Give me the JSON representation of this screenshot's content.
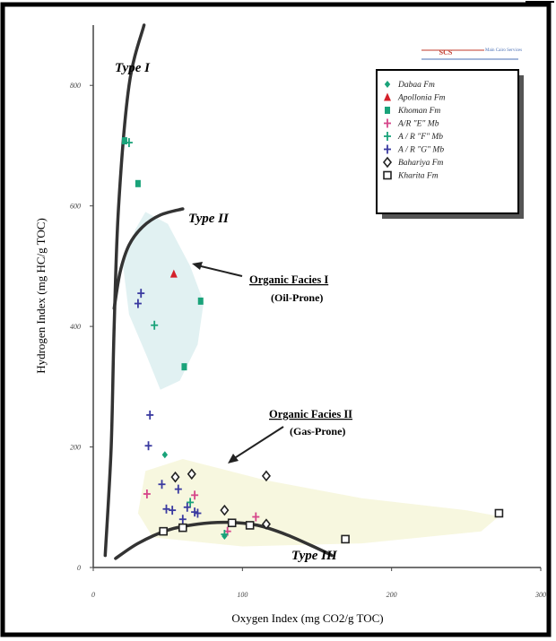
{
  "chart_data": {
    "type": "scatter",
    "title": "",
    "xlabel": "Oxygen Index (mg CO2/g TOC)",
    "ylabel": "Hydrogen Index (mg HC/g TOC)",
    "xlim": [
      0,
      300
    ],
    "ylim": [
      0,
      900
    ],
    "x_ticks": [
      0,
      100,
      200,
      300
    ],
    "x_tick_labels": [
      "0",
      "100",
      "200",
      "300"
    ],
    "y_ticks": [
      0,
      200,
      400,
      600,
      800
    ],
    "y_tick_labels": [
      "0",
      "200",
      "400",
      "600",
      "800"
    ],
    "grid": false,
    "legend_position": "top-right",
    "logo": {
      "left": "SCS",
      "right": "Main Cairo Services",
      "color": "#c0392b"
    },
    "series": [
      {
        "name": "Dabaa Fm",
        "marker": "diamond-filled",
        "color": "#1aa37a",
        "points": [
          [
            48,
            187
          ],
          [
            88,
            52
          ]
        ]
      },
      {
        "name": "Apollonia Fm",
        "marker": "triangle",
        "color": "#d4202a",
        "points": [
          [
            54,
            487
          ]
        ]
      },
      {
        "name": "Khoman Fm",
        "marker": "square-filled",
        "color": "#1aa37a",
        "points": [
          [
            21,
            708
          ],
          [
            30,
            637
          ],
          [
            72,
            442
          ],
          [
            61,
            333
          ]
        ]
      },
      {
        "name": "A/R \"E\" Mb",
        "marker": "plus",
        "color": "#d6468a",
        "points": [
          [
            36,
            122
          ],
          [
            68,
            120
          ],
          [
            109,
            84
          ],
          [
            90,
            60
          ]
        ]
      },
      {
        "name": "A / R \"F\" Mb",
        "marker": "plus",
        "color": "#1aa37a",
        "points": [
          [
            24,
            705
          ],
          [
            41,
            402
          ],
          [
            65,
            108
          ],
          [
            88,
            55
          ]
        ]
      },
      {
        "name": "A / R \"G\" Mb",
        "marker": "plus",
        "color": "#3a3aa0",
        "points": [
          [
            30,
            438
          ],
          [
            32,
            455
          ],
          [
            38,
            253
          ],
          [
            37,
            202
          ],
          [
            46,
            138
          ],
          [
            49,
            97
          ],
          [
            53,
            95
          ],
          [
            57,
            130
          ],
          [
            63,
            100
          ],
          [
            68,
            92
          ],
          [
            70,
            90
          ],
          [
            60,
            80
          ]
        ]
      },
      {
        "name": "Bahariya Fm",
        "marker": "diamond-open",
        "color": "#222222",
        "points": [
          [
            55,
            150
          ],
          [
            66,
            155
          ],
          [
            88,
            95
          ],
          [
            116,
            152
          ],
          [
            116,
            72
          ]
        ]
      },
      {
        "name": "Kharita Fm",
        "marker": "square-open",
        "color": "#222222",
        "points": [
          [
            47,
            60
          ],
          [
            60,
            66
          ],
          [
            93,
            74
          ],
          [
            105,
            70
          ],
          [
            169,
            47
          ],
          [
            272,
            90
          ]
        ]
      }
    ],
    "annotations": [
      {
        "text": "Type I",
        "style": "bold-italic"
      },
      {
        "text": "Type II",
        "style": "bold-italic"
      },
      {
        "text": "Type III",
        "style": "bold-italic"
      },
      {
        "text": "Organic Facies I",
        "style": "bold-underline"
      },
      {
        "text": "(Oil-Prone)",
        "style": "bold"
      },
      {
        "text": "Organic Facies  II",
        "style": "bold-underline"
      },
      {
        "text": "(Gas-Prone)",
        "style": "bold"
      }
    ],
    "curves": {
      "type_i": [
        [
          8,
          20
        ],
        [
          12,
          200
        ],
        [
          14,
          400
        ],
        [
          17,
          600
        ],
        [
          24,
          800
        ],
        [
          34,
          900
        ]
      ],
      "type_ii": [
        [
          14,
          430
        ],
        [
          18,
          490
        ],
        [
          24,
          535
        ],
        [
          33,
          565
        ],
        [
          45,
          585
        ],
        [
          60,
          595
        ]
      ],
      "type_iii": [
        [
          15,
          15
        ],
        [
          30,
          40
        ],
        [
          50,
          62
        ],
        [
          70,
          72
        ],
        [
          90,
          75
        ],
        [
          110,
          70
        ],
        [
          130,
          54
        ],
        [
          150,
          32
        ],
        [
          160,
          20
        ]
      ]
    },
    "regions": {
      "facies_i": [
        [
          20,
          500
        ],
        [
          28,
          560
        ],
        [
          35,
          590
        ],
        [
          50,
          570
        ],
        [
          65,
          500
        ],
        [
          74,
          440
        ],
        [
          70,
          370
        ],
        [
          58,
          310
        ],
        [
          45,
          295
        ],
        [
          36,
          350
        ],
        [
          24,
          420
        ]
      ],
      "facies_ii": [
        [
          60,
          180
        ],
        [
          115,
          145
        ],
        [
          180,
          115
        ],
        [
          250,
          95
        ],
        [
          272,
          85
        ],
        [
          260,
          60
        ],
        [
          180,
          40
        ],
        [
          100,
          35
        ],
        [
          40,
          50
        ],
        [
          30,
          90
        ],
        [
          35,
          160
        ]
      ]
    }
  }
}
